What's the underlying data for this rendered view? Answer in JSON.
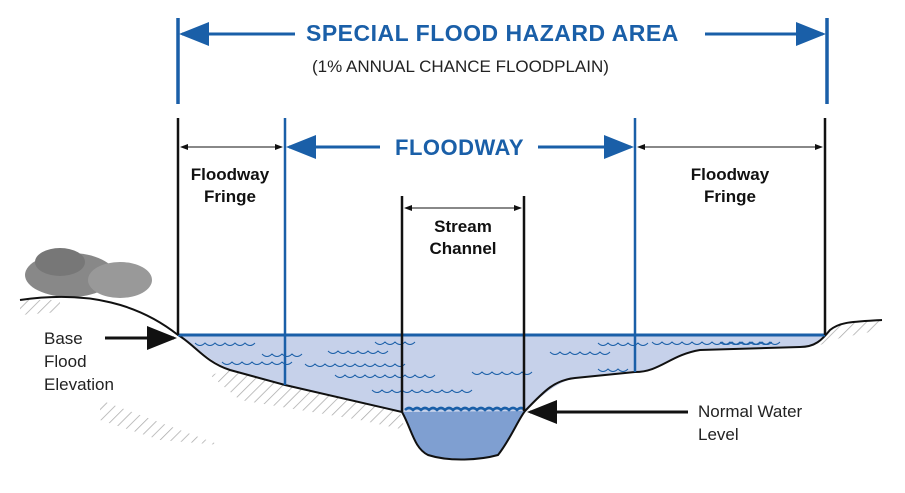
{
  "title": "SPECIAL FLOOD HAZARD AREA",
  "subtitle": "(1% ANNUAL CHANCE FLOODPLAIN)",
  "floodway": "FLOODWAY",
  "fringe_left": [
    "Floodway",
    "Fringe"
  ],
  "fringe_right": [
    "Floodway",
    "Fringe"
  ],
  "stream_channel": [
    "Stream",
    "Channel"
  ],
  "base_flood_elevation": [
    "Base",
    "Flood",
    "Elevation"
  ],
  "normal_water_level": [
    "Normal Water",
    "Level"
  ],
  "colors": {
    "accent": "#1a5fa8",
    "flood_water": "#c6d1ea",
    "channel_water": "#7f9fd1",
    "ground": "#111111"
  }
}
